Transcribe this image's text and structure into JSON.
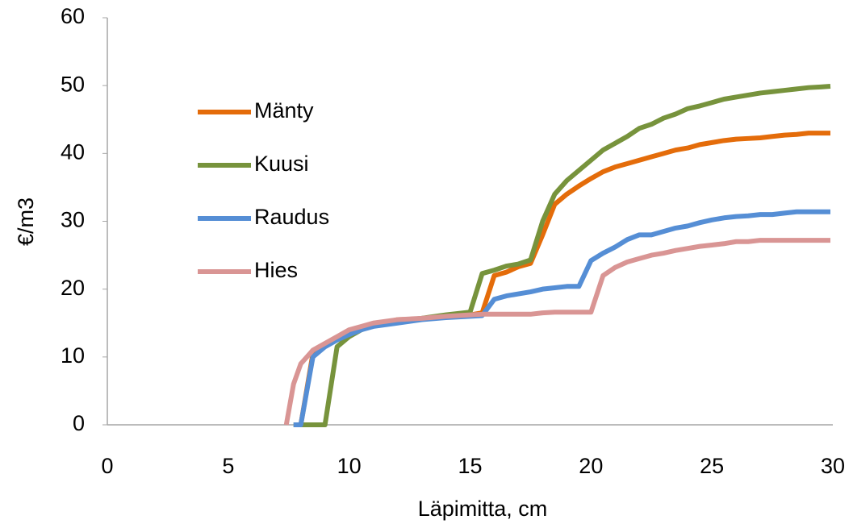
{
  "chart_data": {
    "type": "line",
    "xlabel": "Läpimitta, cm",
    "ylabel": "€/m3",
    "x": [
      7.4,
      7.7,
      8,
      8.5,
      9,
      9.5,
      10,
      10.5,
      11,
      12,
      13,
      14,
      15,
      15.5,
      16,
      16.5,
      17,
      17.5,
      18,
      18.5,
      19,
      19.5,
      20,
      20.5,
      21,
      21.5,
      22,
      22.5,
      23,
      23.5,
      24,
      24.5,
      25,
      25.5,
      26,
      26.5,
      27,
      27.5,
      28,
      28.5,
      29,
      29.5,
      29.9
    ],
    "series": [
      {
        "name": "Mänty",
        "color": "#e46c0a",
        "values": [
          null,
          null,
          0,
          10.5,
          11.8,
          12.8,
          13.7,
          14.3,
          14.8,
          15.5,
          15.6,
          16,
          16.2,
          16.5,
          22,
          22.5,
          23.3,
          23.8,
          28,
          32.5,
          34,
          35.2,
          36.3,
          37.3,
          38,
          38.5,
          39,
          39.5,
          40,
          40.5,
          40.8,
          41.3,
          41.6,
          41.9,
          42.1,
          42.2,
          42.3,
          42.5,
          42.7,
          42.8,
          43,
          43,
          43
        ]
      },
      {
        "name": "Kuusi",
        "color": "#77933c",
        "values": [
          null,
          0,
          0,
          0,
          0,
          11.5,
          13,
          14,
          14.7,
          15.3,
          15.7,
          16.2,
          16.6,
          22.3,
          22.8,
          23.4,
          23.7,
          24.3,
          30,
          34,
          36,
          37.5,
          39,
          40.5,
          41.5,
          42.5,
          43.7,
          44.3,
          45.2,
          45.8,
          46.6,
          47,
          47.5,
          48,
          48.3,
          48.6,
          48.9,
          49.1,
          49.3,
          49.5,
          49.7,
          49.8,
          49.9
        ]
      },
      {
        "name": "Raudus",
        "color": "#558ed5",
        "values": [
          null,
          0,
          0,
          10,
          11.5,
          12.5,
          13.3,
          14,
          14.5,
          15,
          15.5,
          15.8,
          16,
          16.1,
          18.5,
          19,
          19.3,
          19.6,
          20,
          20.2,
          20.4,
          20.4,
          24.2,
          25.3,
          26.2,
          27.3,
          28,
          28,
          28.5,
          29,
          29.3,
          29.8,
          30.2,
          30.5,
          30.7,
          30.8,
          31,
          31,
          31.2,
          31.4,
          31.4,
          31.4,
          31.4
        ]
      },
      {
        "name": "Hies",
        "color": "#d99594",
        "values": [
          0,
          6,
          9,
          11,
          12,
          13,
          14,
          14.5,
          15,
          15.5,
          15.7,
          16,
          16.2,
          16.3,
          16.3,
          16.3,
          16.3,
          16.3,
          16.5,
          16.6,
          16.6,
          16.6,
          16.6,
          22,
          23.2,
          24,
          24.5,
          25,
          25.3,
          25.7,
          26,
          26.3,
          26.5,
          26.7,
          27,
          27,
          27.2,
          27.2,
          27.2,
          27.2,
          27.2,
          27.2,
          27.2
        ]
      }
    ],
    "xlim": [
      0,
      30
    ],
    "xticks": [
      0,
      5,
      10,
      15,
      20,
      25,
      30
    ],
    "ylim": [
      0,
      60
    ],
    "yticks": [
      0,
      10,
      20,
      30,
      40,
      50,
      60
    ],
    "grid": false,
    "legend": "left"
  }
}
